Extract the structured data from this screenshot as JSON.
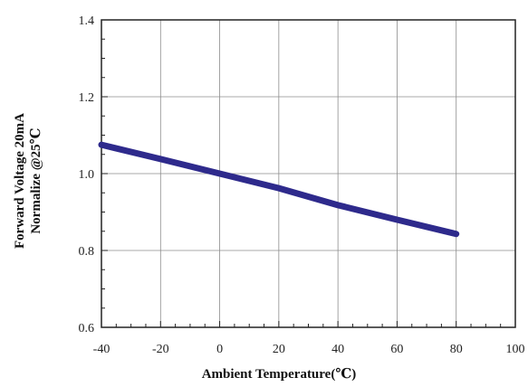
{
  "chart_data": {
    "type": "line",
    "title": "",
    "xlabel": "Ambient Temperature(℃)",
    "ylabel_line1": "Forward Voltage 20mA",
    "ylabel_line2": "Normalize @25℃",
    "xlim": [
      -40,
      100
    ],
    "ylim": [
      0.6,
      1.4
    ],
    "xticks": [
      -40,
      -20,
      0,
      20,
      40,
      60,
      80,
      100
    ],
    "yticks": [
      0.6,
      0.8,
      1.0,
      1.2,
      1.4
    ],
    "xtick_labels": [
      "-40",
      "-20",
      "0",
      "20",
      "40",
      "60",
      "80",
      "100"
    ],
    "ytick_labels": [
      "0.6",
      "0.8",
      "1.0",
      "1.2",
      "1.4"
    ],
    "grid": true,
    "series": [
      {
        "color": "#2e2a8c",
        "x": [
          -40,
          -20,
          0,
          20,
          40,
          60,
          80
        ],
        "y": [
          1.075,
          1.038,
          1.0,
          0.962,
          0.918,
          0.88,
          0.843
        ]
      }
    ]
  }
}
